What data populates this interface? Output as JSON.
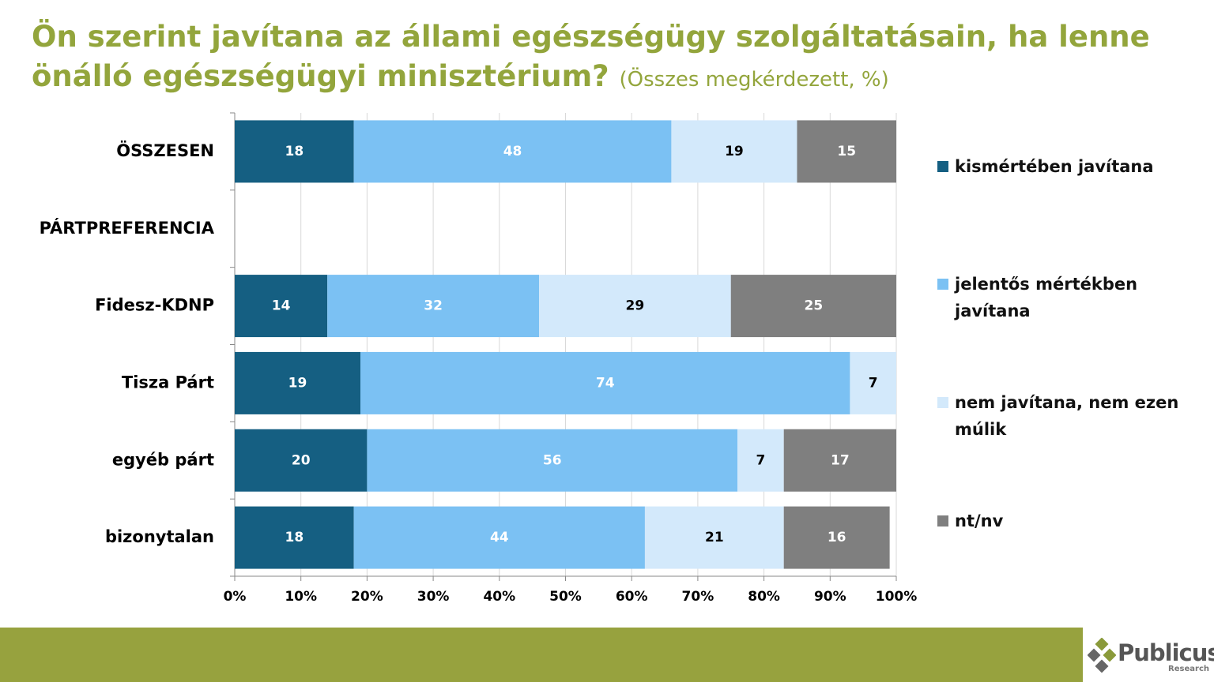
{
  "chart_data": {
    "type": "stacked-bar-horizontal",
    "title": "Ön szerint javítana az állami egészségügy szolgáltatásain, ha lenne önálló egészségügyi minisztérium?",
    "subtitle": "(Összes megkérdezett, %)",
    "categories": [
      "ÖSSZESEN",
      "PÁRTPREFERENCIA",
      "Fidesz-KDNP",
      "Tisza Párt",
      "egyéb párt",
      "bizonytalan"
    ],
    "series": [
      {
        "name": "kismértében javítana",
        "color": "#155f82",
        "label_color": "#ffffff",
        "values": [
          18,
          null,
          14,
          19,
          20,
          18
        ]
      },
      {
        "name": "jelentős mértékben javítana",
        "color": "#7bc1f3",
        "label_color": "#ffffff",
        "values": [
          48,
          null,
          32,
          74,
          56,
          44
        ]
      },
      {
        "name": "nem javítana, nem ezen múlik",
        "color": "#d3e9fb",
        "label_color": "#000000",
        "values": [
          19,
          null,
          29,
          7,
          7,
          21
        ]
      },
      {
        "name": "nt/nv",
        "color": "#7f7f7f",
        "label_color": "#ffffff",
        "values": [
          15,
          null,
          25,
          null,
          17,
          16
        ]
      }
    ],
    "xlim": [
      0,
      100
    ],
    "xticks": [
      {
        "value": 0,
        "label": "0%"
      },
      {
        "value": 10,
        "label": "10%"
      },
      {
        "value": 20,
        "label": "20%"
      },
      {
        "value": 30,
        "label": "30%"
      },
      {
        "value": 40,
        "label": "40%"
      },
      {
        "value": 50,
        "label": "50%"
      },
      {
        "value": 60,
        "label": "60%"
      },
      {
        "value": 70,
        "label": "70%"
      },
      {
        "value": 80,
        "label": "80%"
      },
      {
        "value": 90,
        "label": "90%"
      },
      {
        "value": 100,
        "label": "100%"
      }
    ],
    "grid": true
  },
  "logo": {
    "name": "Publicus",
    "tagline": "Research"
  }
}
